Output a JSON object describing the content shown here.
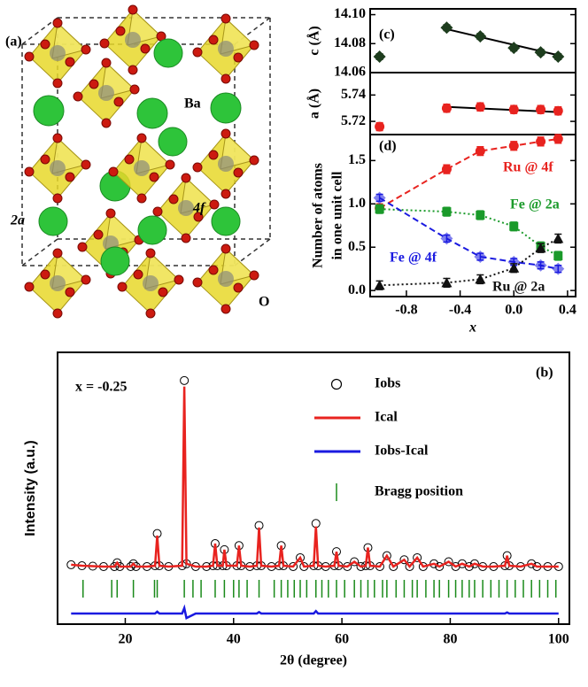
{
  "structure": {
    "panel_label": "(a)",
    "labels": [
      "Ba",
      "2a",
      "4f",
      "O"
    ]
  },
  "chart_data": [
    {
      "type": "scatter",
      "panel_label": "(c)",
      "ylabel": "c (Å)",
      "x": [
        -1,
        -0.5,
        -0.25,
        0,
        0.2,
        0.33
      ],
      "values": [
        14.071,
        14.091,
        14.085,
        14.077,
        14.074,
        14.071
      ],
      "error": 0.002,
      "color": "#1e3d1e",
      "marker": "diamond",
      "fit": {
        "x": [
          -0.5,
          0.33
        ],
        "values": [
          14.09,
          14.072
        ]
      },
      "xlim": [
        -1.07,
        0.46
      ],
      "ylim": [
        14.06,
        14.104
      ],
      "yticks": [
        14.06,
        14.08,
        {
          "value": 14.1,
          "label": "14.10"
        }
      ]
    },
    {
      "type": "scatter",
      "ylabel": "a (Å)",
      "x": [
        -1,
        -0.5,
        -0.25,
        0,
        0.2,
        0.33
      ],
      "values": [
        5.716,
        5.73,
        5.731,
        5.729,
        5.729,
        5.728
      ],
      "error": 0.003,
      "color": "#e8231f",
      "marker": "circle",
      "fit": {
        "x": [
          -0.5,
          0.33
        ],
        "values": [
          5.731,
          5.727
        ]
      },
      "xlim": [
        -1.07,
        0.46
      ],
      "ylim": [
        5.71,
        5.757
      ],
      "yticks": [
        5.72,
        5.74
      ]
    },
    {
      "type": "line",
      "panel_label": "(d)",
      "ylabel": [
        "Number of atoms",
        "in one unit cell"
      ],
      "xlabel": "x",
      "x": [
        -1,
        -0.5,
        -0.25,
        0,
        0.2,
        0.33
      ],
      "series": [
        {
          "name": "Ru @ 4f",
          "color": "#e8231f",
          "marker": "circle",
          "linestyle": "dashed",
          "error": 0.05,
          "values": [
            0.95,
            1.4,
            1.61,
            1.67,
            1.72,
            1.75
          ]
        },
        {
          "name": "Fe @ 2a",
          "color": "#1a9a2a",
          "marker": "square",
          "linestyle": "dotted",
          "error": 0.05,
          "values": [
            0.94,
            0.91,
            0.87,
            0.74,
            0.51,
            0.4
          ]
        },
        {
          "name": "Fe @ 4f",
          "color": "#1a1ae0",
          "marker": "diamond",
          "linestyle": "dashed",
          "error": 0.04,
          "values": [
            1.07,
            0.6,
            0.39,
            0.33,
            0.29,
            0.25
          ]
        },
        {
          "name": "Ru @ 2a",
          "color": "#111111",
          "marker": "triangle",
          "linestyle": "dotted",
          "error": 0.05,
          "values": [
            0.06,
            0.09,
            0.13,
            0.26,
            0.49,
            0.6
          ]
        }
      ],
      "xlim": [
        -1.07,
        0.46
      ],
      "ylim": [
        -0.07,
        1.8
      ],
      "xticks": [
        -0.8,
        -0.4,
        {
          "value": 0,
          "label": "0.0"
        },
        0.4
      ],
      "yticks": [
        {
          "value": 0,
          "label": "0.0"
        },
        0.5,
        {
          "value": 1,
          "label": "1.0"
        },
        1.5
      ]
    },
    {
      "type": "line",
      "panel_label": "(b)",
      "annotation": "x = -0.25",
      "xlabel": "2θ (degree)",
      "ylabel": "Intensity (a.u.)",
      "legend": "upper right",
      "x": [
        10,
        12,
        14,
        16,
        18,
        18.5,
        19,
        21,
        21.5,
        22,
        24,
        25.5,
        25.9,
        26.3,
        28,
        30.5,
        30.9,
        31.3,
        33,
        35,
        36.2,
        36.6,
        37,
        38,
        38.3,
        38.7,
        40.6,
        41,
        41.4,
        43,
        44.3,
        44.7,
        45.1,
        47,
        48.4,
        48.8,
        49.2,
        51,
        52.3,
        53,
        54.8,
        55.2,
        55.6,
        57,
        58.6,
        59,
        59.4,
        61,
        62.3,
        63.5,
        64.4,
        64.8,
        65.2,
        67,
        68.3,
        69.5,
        71.5,
        72.5,
        73.9,
        75,
        77,
        78,
        79.7,
        81,
        82.2,
        83.5,
        84.5,
        86,
        88,
        90.1,
        90.5,
        90.9,
        93,
        95,
        96,
        98,
        100
      ],
      "series": [
        {
          "name": "Iobs",
          "color": "#000000",
          "marker": "open-circle",
          "linestyle": "none",
          "values": [
            4.5,
            4,
            3.8,
            3.6,
            3.6,
            5.5,
            3.6,
            3.6,
            5,
            3.6,
            3.6,
            4,
            20,
            4,
            3.6,
            4,
            96,
            5,
            3.6,
            3.6,
            4,
            15,
            4,
            4,
            12,
            4,
            4,
            14,
            4,
            3.6,
            4,
            24,
            4,
            3.6,
            4,
            14,
            4,
            3.6,
            8,
            3.6,
            4,
            25,
            4,
            3.6,
            4,
            11,
            4,
            3.6,
            6,
            3.6,
            4,
            13,
            4,
            3.6,
            9,
            3.6,
            7,
            3.6,
            8,
            3.6,
            5,
            3.6,
            6,
            3.6,
            5,
            3.6,
            5,
            3.6,
            3.6,
            4,
            9,
            4,
            3.6,
            5,
            3.6,
            3.6,
            3.6
          ]
        },
        {
          "name": "Ical",
          "color": "#e8231f",
          "marker": "none",
          "linestyle": "solid",
          "values": [
            4.5,
            4,
            3.8,
            3.6,
            3.6,
            5.5,
            3.6,
            3.6,
            5,
            3.6,
            3.6,
            4,
            19,
            4,
            3.6,
            4,
            93,
            5,
            3.6,
            3.6,
            4,
            15,
            4,
            4,
            12,
            4,
            4,
            14,
            4,
            3.6,
            4,
            23,
            4,
            3.6,
            4,
            14,
            4,
            3.6,
            8,
            3.6,
            4,
            23.5,
            4,
            3.6,
            4,
            11,
            4,
            3.6,
            6,
            3.6,
            4,
            13,
            4,
            3.6,
            9,
            3.6,
            7,
            3.6,
            8,
            3.6,
            5,
            3.6,
            6,
            3.6,
            5,
            3.6,
            5,
            3.6,
            3.6,
            4,
            9,
            4,
            3.6,
            5,
            3.6,
            3.6,
            3.6
          ]
        },
        {
          "name": "Iobs-Ical",
          "color": "#1a1ae0",
          "marker": "none",
          "linestyle": "solid",
          "values": [
            -19.7,
            -19.7,
            -19.7,
            -19.7,
            -19.7,
            -19.7,
            -19.7,
            -19.7,
            -19.7,
            -19.7,
            -19.7,
            -19.7,
            -18.8,
            -19.7,
            -19.7,
            -19.7,
            -17,
            -22,
            -19.7,
            -19.7,
            -19.7,
            -19.7,
            -19.7,
            -19.7,
            -19.7,
            -19.7,
            -19.7,
            -19.7,
            -19.7,
            -19.7,
            -19.7,
            -19,
            -19.7,
            -19.7,
            -19.7,
            -19.7,
            -19.7,
            -19.7,
            -19.7,
            -19.7,
            -19.7,
            -18.5,
            -19.7,
            -19.7,
            -19.7,
            -19.7,
            -19.7,
            -19.7,
            -19.7,
            -19.7,
            -19.7,
            -19.7,
            -19.7,
            -19.7,
            -19.7,
            -19.7,
            -19.7,
            -19.7,
            -19.7,
            -19.7,
            -19.7,
            -19.7,
            -19.7,
            -19.7,
            -19.7,
            -19.7,
            -19.7,
            -19.7,
            -19.7,
            -19.7,
            -19.2,
            -19.7,
            -19.7,
            -19.7,
            -19.7,
            -19.7,
            -19.7
          ]
        },
        {
          "name": "Bragg position",
          "color": "#1a8a1a",
          "marker": "vline",
          "linestyle": "none",
          "x": [
            12.2,
            17.5,
            18.5,
            21.5,
            25.4,
            25.9,
            30.9,
            32.5,
            34,
            36.6,
            38.3,
            40,
            41,
            42.5,
            44.7,
            47.5,
            48.8,
            50,
            51.2,
            52.3,
            53.5,
            55.2,
            56.3,
            57.5,
            59,
            60.5,
            62.3,
            63.5,
            64.8,
            66,
            67.5,
            68.3,
            70,
            71.5,
            73,
            73.9,
            75.5,
            77,
            78,
            79.7,
            81,
            82.2,
            83.5,
            84.5,
            86,
            87.5,
            89,
            90.5,
            92,
            93.5,
            95,
            96.5,
            98,
            99.5
          ],
          "values": [
            -7.4,
            -7.4,
            -7.4,
            -7.4,
            -7.4,
            -7.4,
            -7.4,
            -7.4,
            -7.4,
            -7.4,
            -7.4,
            -7.4,
            -7.4,
            -7.4,
            -7.4,
            -7.4,
            -7.4,
            -7.4,
            -7.4,
            -7.4,
            -7.4,
            -7.4,
            -7.4,
            -7.4,
            -7.4,
            -7.4,
            -7.4,
            -7.4,
            -7.4,
            -7.4,
            -7.4,
            -7.4,
            -7.4,
            -7.4,
            -7.4,
            -7.4,
            -7.4,
            -7.4,
            -7.4,
            -7.4,
            -7.4,
            -7.4,
            -7.4,
            -7.4,
            -7.4,
            -7.4,
            -7.4,
            -7.4,
            -7.4,
            -7.4,
            -7.4,
            -7.4,
            -7.4,
            -7.4
          ]
        }
      ],
      "xlim": [
        7.5,
        102
      ],
      "ylim": [
        -25,
        110
      ],
      "xticks": [
        20,
        40,
        60,
        80,
        100
      ]
    }
  ]
}
